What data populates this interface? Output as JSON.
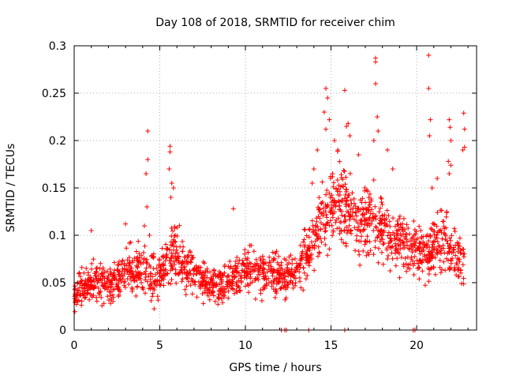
{
  "chart_data": {
    "type": "scatter",
    "title": "Day 108 of 2018, SRMTID for receiver chim",
    "xlabel": "GPS time / hours",
    "ylabel": "SRMTID / TECUs",
    "xlim": [
      0,
      23.5
    ],
    "ylim": [
      0,
      0.3
    ],
    "xticks": [
      0,
      5,
      10,
      15,
      20
    ],
    "xtick_labels": [
      "0",
      "5",
      "10",
      "15",
      "20"
    ],
    "yticks": [
      0,
      0.05,
      0.1,
      0.15,
      0.2,
      0.25,
      0.3
    ],
    "ytick_labels": [
      "0",
      "0.05",
      "0.1",
      "0.15",
      "0.2",
      "0.25",
      "0.3"
    ],
    "grid": true,
    "marker": "+",
    "color": "#ff0000",
    "series": [
      {
        "name": "SRMTID",
        "profile": [
          {
            "x": 0.0,
            "base": 0.038,
            "spread": 0.02
          },
          {
            "x": 1.0,
            "base": 0.052,
            "spread": 0.022
          },
          {
            "x": 2.0,
            "base": 0.05,
            "spread": 0.022
          },
          {
            "x": 3.0,
            "base": 0.06,
            "spread": 0.025
          },
          {
            "x": 4.0,
            "base": 0.068,
            "spread": 0.028
          },
          {
            "x": 4.8,
            "base": 0.05,
            "spread": 0.03
          },
          {
            "x": 5.8,
            "base": 0.08,
            "spread": 0.035
          },
          {
            "x": 7.0,
            "base": 0.06,
            "spread": 0.025
          },
          {
            "x": 8.5,
            "base": 0.045,
            "spread": 0.022
          },
          {
            "x": 10.0,
            "base": 0.065,
            "spread": 0.028
          },
          {
            "x": 11.5,
            "base": 0.06,
            "spread": 0.025
          },
          {
            "x": 12.8,
            "base": 0.055,
            "spread": 0.025
          },
          {
            "x": 13.5,
            "base": 0.075,
            "spread": 0.03
          },
          {
            "x": 14.5,
            "base": 0.12,
            "spread": 0.04
          },
          {
            "x": 15.5,
            "base": 0.14,
            "spread": 0.045
          },
          {
            "x": 16.5,
            "base": 0.11,
            "spread": 0.04
          },
          {
            "x": 17.5,
            "base": 0.12,
            "spread": 0.04
          },
          {
            "x": 18.5,
            "base": 0.095,
            "spread": 0.035
          },
          {
            "x": 19.5,
            "base": 0.09,
            "spread": 0.03
          },
          {
            "x": 20.5,
            "base": 0.08,
            "spread": 0.03
          },
          {
            "x": 21.5,
            "base": 0.095,
            "spread": 0.035
          },
          {
            "x": 22.8,
            "base": 0.07,
            "spread": 0.03
          }
        ],
        "point_count": 1800,
        "outliers": [
          {
            "x": 4.3,
            "y": 0.21
          },
          {
            "x": 4.3,
            "y": 0.18
          },
          {
            "x": 4.2,
            "y": 0.165
          },
          {
            "x": 4.25,
            "y": 0.13
          },
          {
            "x": 4.1,
            "y": 0.11
          },
          {
            "x": 4.4,
            "y": 0.1
          },
          {
            "x": 5.6,
            "y": 0.194
          },
          {
            "x": 5.6,
            "y": 0.188
          },
          {
            "x": 5.55,
            "y": 0.17
          },
          {
            "x": 5.7,
            "y": 0.155
          },
          {
            "x": 5.8,
            "y": 0.15
          },
          {
            "x": 5.65,
            "y": 0.14
          },
          {
            "x": 14.7,
            "y": 0.255
          },
          {
            "x": 14.8,
            "y": 0.245
          },
          {
            "x": 14.6,
            "y": 0.23
          },
          {
            "x": 14.9,
            "y": 0.222
          },
          {
            "x": 14.7,
            "y": 0.212
          },
          {
            "x": 15.8,
            "y": 0.253
          },
          {
            "x": 15.9,
            "y": 0.215
          },
          {
            "x": 16.0,
            "y": 0.218
          },
          {
            "x": 16.1,
            "y": 0.205
          },
          {
            "x": 17.6,
            "y": 0.287
          },
          {
            "x": 17.6,
            "y": 0.283
          },
          {
            "x": 17.6,
            "y": 0.26
          },
          {
            "x": 17.7,
            "y": 0.225
          },
          {
            "x": 17.75,
            "y": 0.21
          },
          {
            "x": 17.5,
            "y": 0.2
          },
          {
            "x": 18.3,
            "y": 0.19
          },
          {
            "x": 18.6,
            "y": 0.17
          },
          {
            "x": 20.7,
            "y": 0.29
          },
          {
            "x": 20.7,
            "y": 0.255
          },
          {
            "x": 20.8,
            "y": 0.222
          },
          {
            "x": 20.75,
            "y": 0.205
          },
          {
            "x": 20.9,
            "y": 0.15
          },
          {
            "x": 21.2,
            "y": 0.16
          },
          {
            "x": 21.9,
            "y": 0.222
          },
          {
            "x": 21.95,
            "y": 0.214
          },
          {
            "x": 22.0,
            "y": 0.2
          },
          {
            "x": 21.85,
            "y": 0.178
          },
          {
            "x": 22.0,
            "y": 0.174
          },
          {
            "x": 21.9,
            "y": 0.165
          },
          {
            "x": 22.75,
            "y": 0.229
          },
          {
            "x": 22.8,
            "y": 0.212
          },
          {
            "x": 22.8,
            "y": 0.193
          },
          {
            "x": 22.7,
            "y": 0.19
          },
          {
            "x": 9.3,
            "y": 0.128
          },
          {
            "x": 3.0,
            "y": 0.112
          },
          {
            "x": 1.0,
            "y": 0.105
          },
          {
            "x": 14.0,
            "y": 0.17
          },
          {
            "x": 14.2,
            "y": 0.19
          },
          {
            "x": 13.9,
            "y": 0.155
          },
          {
            "x": 15.2,
            "y": 0.2
          },
          {
            "x": 15.4,
            "y": 0.19
          },
          {
            "x": 16.6,
            "y": 0.185
          },
          {
            "x": 12.1,
            "y": 0.0
          },
          {
            "x": 12.3,
            "y": 0.0
          },
          {
            "x": 12.4,
            "y": 0.0
          },
          {
            "x": 13.7,
            "y": 0.0
          },
          {
            "x": 15.8,
            "y": 0.0
          },
          {
            "x": 19.8,
            "y": 0.0
          },
          {
            "x": 19.9,
            "y": 0.0
          }
        ]
      }
    ]
  }
}
